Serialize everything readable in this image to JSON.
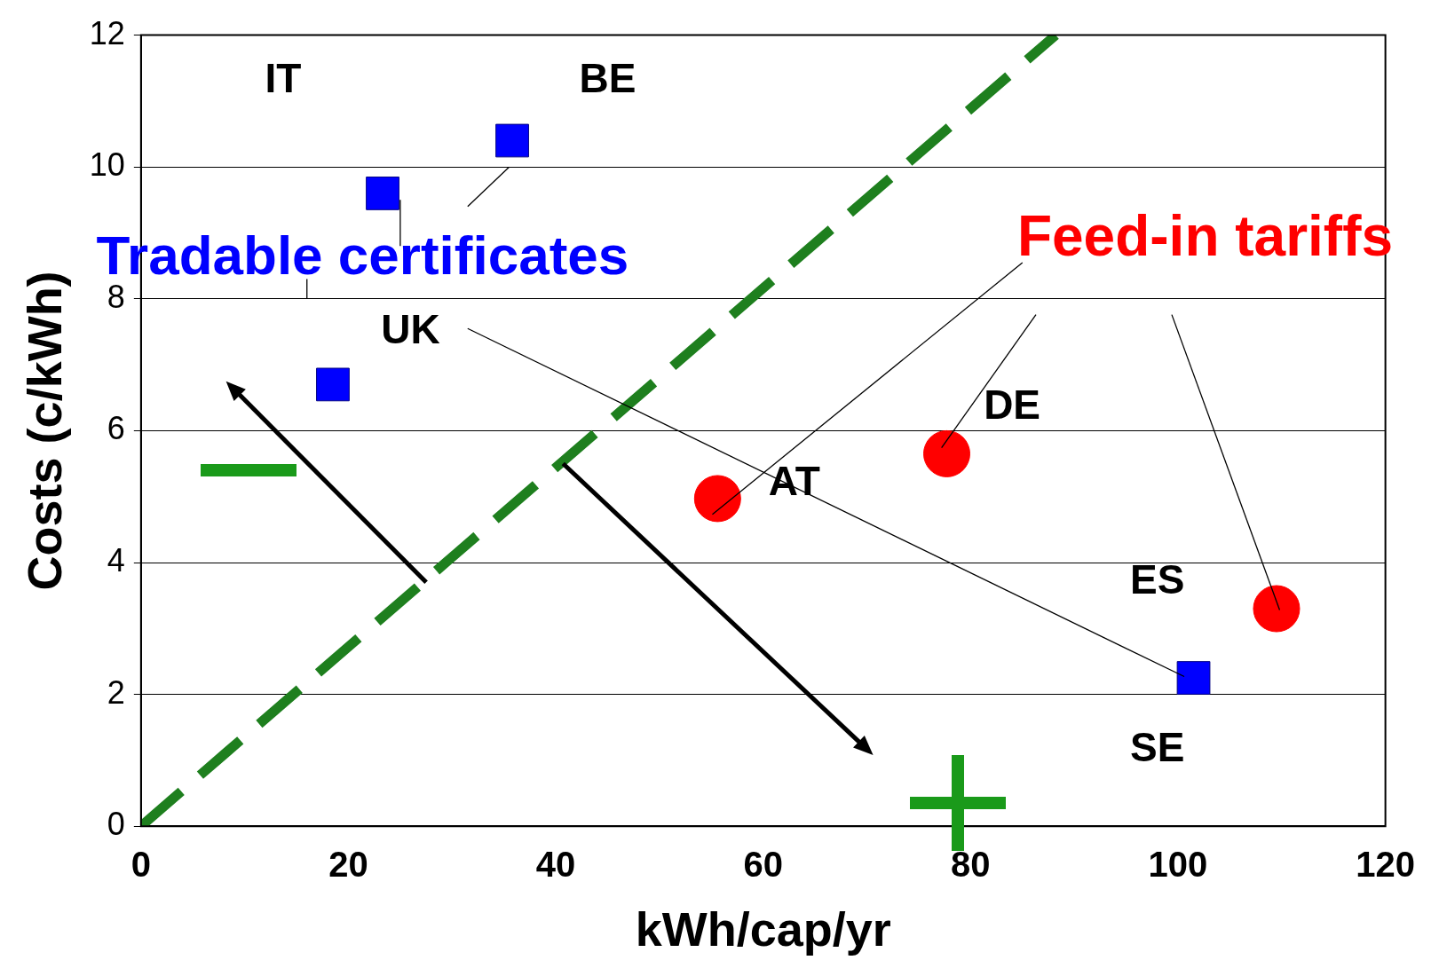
{
  "chart_data": {
    "type": "scatter",
    "xlabel": "kWh/cap/yr",
    "ylabel": "Costs (c/kWh)",
    "xlim": [
      0,
      120
    ],
    "xticks": [
      0,
      20,
      40,
      60,
      80,
      100,
      120
    ],
    "ylim": [
      0,
      12
    ],
    "yticks": [
      0,
      2,
      4,
      6,
      8,
      10,
      12
    ],
    "grid": "y",
    "legend": false,
    "series": [
      {
        "name": "Tradable certificates",
        "color": "#0000ff",
        "marker": "square",
        "x": [
          23.3,
          35.8,
          18.5,
          101.5
        ],
        "values": [
          9.6,
          10.4,
          6.7,
          2.25
        ]
      },
      {
        "name": "Feed-in tariffs",
        "color": "#ff0000",
        "marker": "circle",
        "x": [
          55.6,
          77.7,
          109.5
        ],
        "values": [
          4.97,
          5.65,
          3.3
        ]
      },
      {
        "type": "line",
        "color": "#1e7f1e",
        "line_style": "dashed",
        "marker": "none",
        "x": [
          0,
          88.2
        ],
        "values": [
          0,
          12
        ]
      }
    ],
    "annotations": [
      "IT",
      "BE",
      "UK",
      "DE",
      "AT",
      "ES",
      "SE"
    ]
  }
}
